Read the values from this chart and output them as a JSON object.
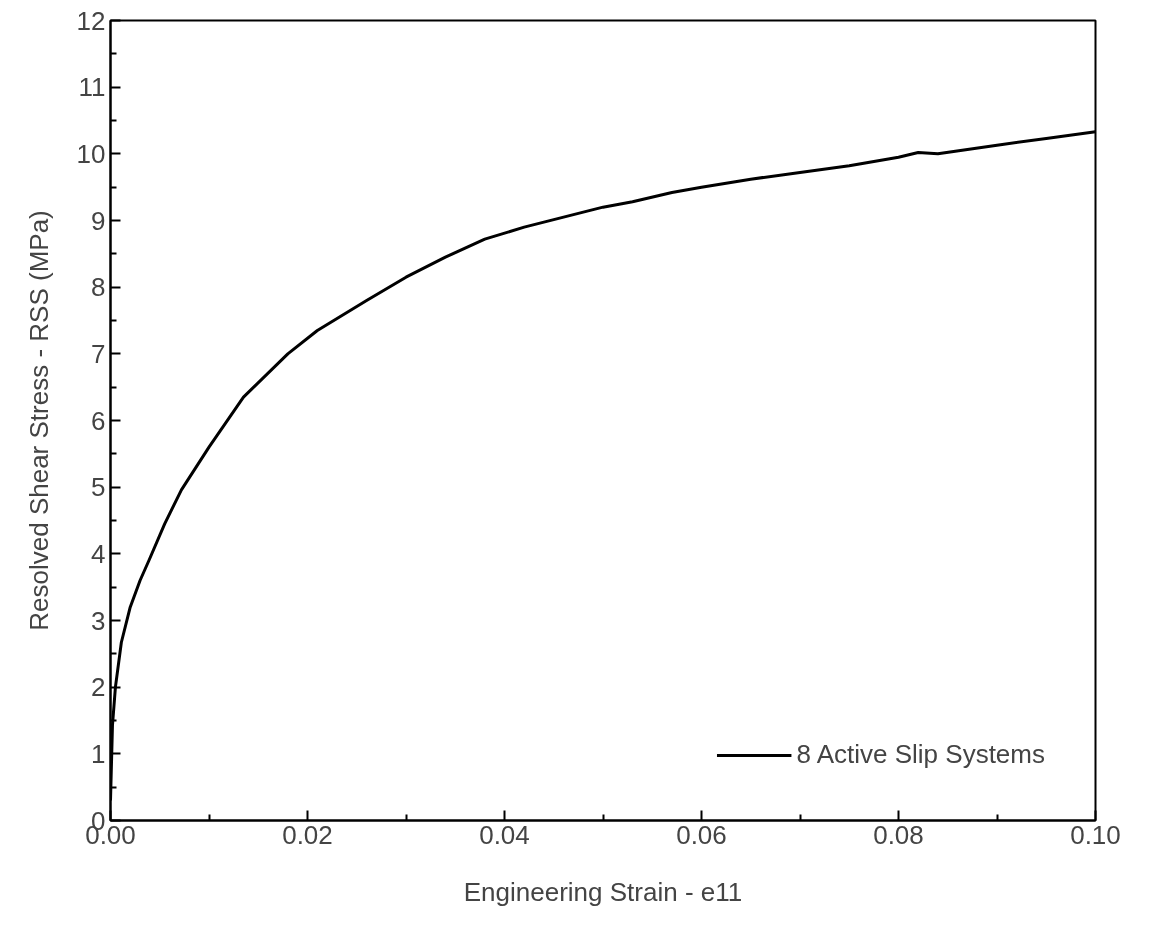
{
  "chart_data": {
    "type": "line",
    "xlabel": "Engineering Strain - e11",
    "ylabel": "Resolved Shear Stress - RSS (MPa)",
    "series": [
      {
        "name": "8 Active Slip Systems",
        "color": "#000000",
        "x": [
          0,
          0.0002,
          0.0005,
          0.0011,
          0.002,
          0.003,
          0.0039,
          0.0055,
          0.0072,
          0.01,
          0.0135,
          0.018,
          0.021,
          0.026,
          0.03,
          0.034,
          0.038,
          0.042,
          0.046,
          0.05,
          0.053,
          0.057,
          0.06,
          0.065,
          0.07,
          0.075,
          0.08,
          0.082,
          0.084,
          0.09,
          0.095,
          0.1
        ],
        "values": [
          0.3,
          1.43,
          2.0,
          2.67,
          3.2,
          3.6,
          3.9,
          4.45,
          4.96,
          5.6,
          6.35,
          7.0,
          7.35,
          7.8,
          8.15,
          8.45,
          8.72,
          8.9,
          9.05,
          9.2,
          9.28,
          9.42,
          9.5,
          9.62,
          9.72,
          9.82,
          9.95,
          10.02,
          10.0,
          10.13,
          10.23,
          10.33
        ]
      }
    ],
    "xlim": [
      0,
      0.1
    ],
    "xticks": [
      {
        "value": 0,
        "label": "0.00"
      },
      {
        "value": 0.02,
        "label": "0.02"
      },
      {
        "value": 0.04,
        "label": "0.04"
      },
      {
        "value": 0.06,
        "label": "0.06"
      },
      {
        "value": 0.08,
        "label": "0.08"
      },
      {
        "value": 0.1,
        "label": "0.10"
      }
    ],
    "ylim": [
      0,
      12
    ],
    "yticks": [
      0,
      1,
      2,
      3,
      4,
      5,
      6,
      7,
      8,
      9,
      10,
      11,
      12
    ],
    "grid": false,
    "legend": "bottom right",
    "line_style": "solid",
    "marker": "none"
  }
}
